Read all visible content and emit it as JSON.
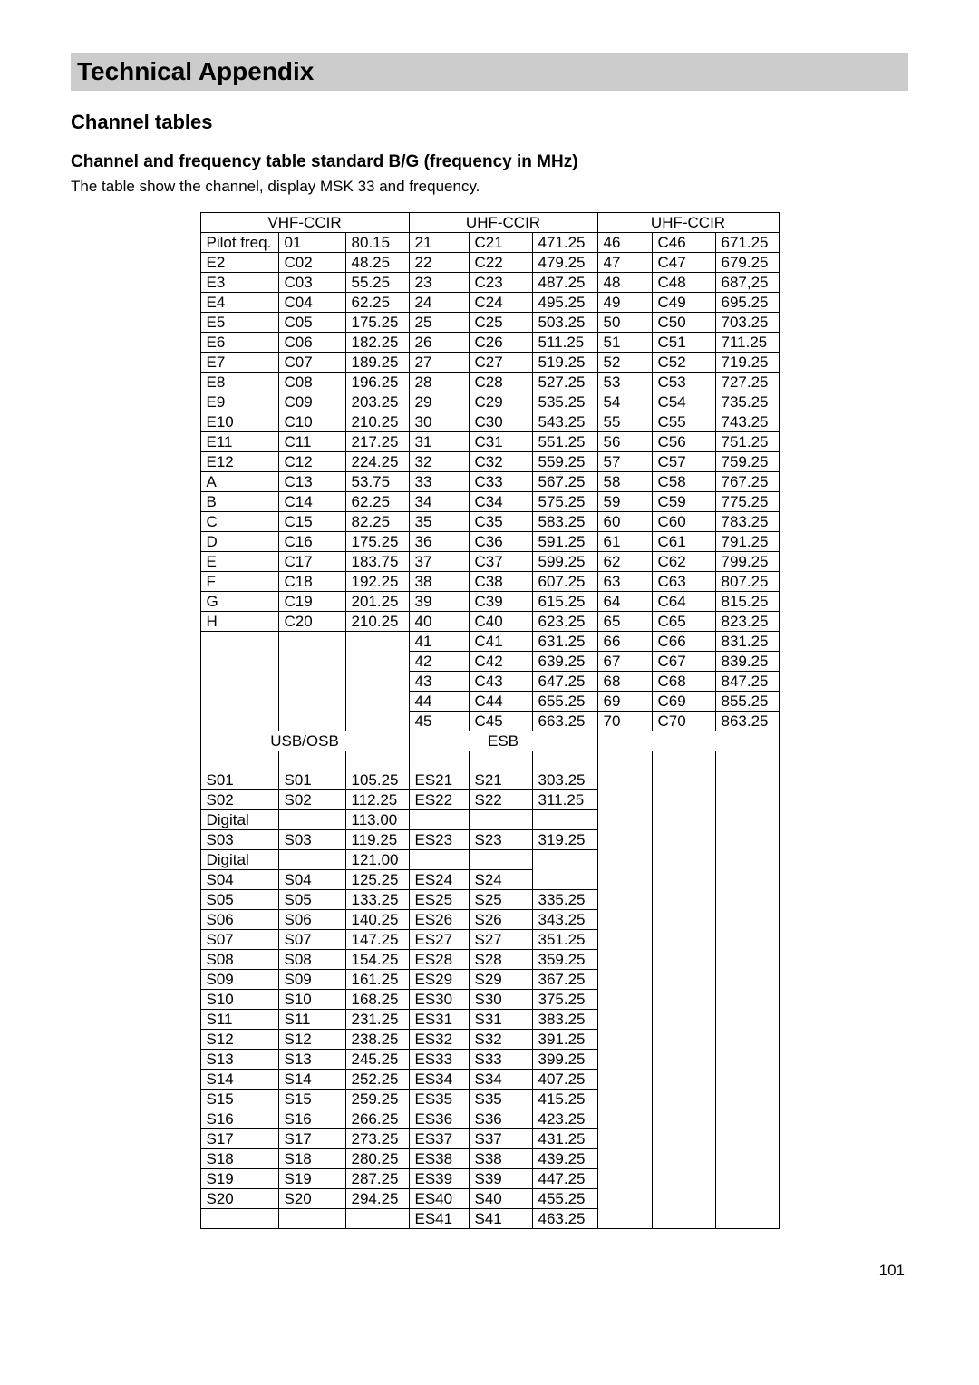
{
  "banner_title": "Technical Appendix",
  "section_title": "Channel tables",
  "subsection_title": "Channel and frequency table standard B/G (frequency in MHz)",
  "intro": "The table show the channel, display MSK 33 and frequency.",
  "page_number": "101",
  "group_headers_1": [
    "VHF-CCIR",
    "UHF-CCIR",
    "UHF-CCIR"
  ],
  "group_headers_2": [
    "USB/OSB",
    "ESB",
    ""
  ],
  "rows_top": [
    [
      "Pilot freq.",
      "01",
      "80.15",
      "21",
      "C21",
      "471.25",
      "46",
      "C46",
      "671.25"
    ],
    [
      "E2",
      "C02",
      "48.25",
      "22",
      "C22",
      "479.25",
      "47",
      "C47",
      "679.25"
    ],
    [
      "E3",
      "C03",
      "55.25",
      "23",
      "C23",
      "487.25",
      "48",
      "C48",
      "687,25"
    ],
    [
      "E4",
      "C04",
      "62.25",
      "24",
      "C24",
      "495.25",
      "49",
      "C49",
      "695.25"
    ],
    [
      "E5",
      "C05",
      "175.25",
      "25",
      "C25",
      "503.25",
      "50",
      "C50",
      "703.25"
    ],
    [
      "E6",
      "C06",
      "182.25",
      "26",
      "C26",
      "511.25",
      "51",
      "C51",
      "711.25"
    ],
    [
      "E7",
      "C07",
      "189.25",
      "27",
      "C27",
      "519.25",
      "52",
      "C52",
      "719.25"
    ],
    [
      "E8",
      "C08",
      "196.25",
      "28",
      "C28",
      "527.25",
      "53",
      "C53",
      "727.25"
    ],
    [
      "E9",
      "C09",
      "203.25",
      "29",
      "C29",
      "535.25",
      "54",
      "C54",
      "735.25"
    ],
    [
      "E10",
      "C10",
      "210.25",
      "30",
      "C30",
      "543.25",
      "55",
      "C55",
      "743.25"
    ],
    [
      "E11",
      "C11",
      "217.25",
      "31",
      "C31",
      "551.25",
      "56",
      "C56",
      "751.25"
    ],
    [
      "E12",
      "C12",
      "224.25",
      "32",
      "C32",
      "559.25",
      "57",
      "C57",
      "759.25"
    ],
    [
      "A",
      "C13",
      "53.75",
      "33",
      "C33",
      "567.25",
      "58",
      "C58",
      "767.25"
    ],
    [
      "B",
      "C14",
      "62.25",
      "34",
      "C34",
      "575.25",
      "59",
      "C59",
      "775.25"
    ],
    [
      "C",
      "C15",
      "82.25",
      "35",
      "C35",
      "583.25",
      "60",
      "C60",
      "783.25"
    ],
    [
      "D",
      "C16",
      "175.25",
      "36",
      "C36",
      "591.25",
      "61",
      "C61",
      "791.25"
    ],
    [
      "E",
      "C17",
      "183.75",
      "37",
      "C37",
      "599.25",
      "62",
      "C62",
      "799.25"
    ],
    [
      "F",
      "C18",
      "192.25",
      "38",
      "C38",
      "607.25",
      "63",
      "C63",
      "807.25"
    ],
    [
      "G",
      "C19",
      "201.25",
      "39",
      "C39",
      "615.25",
      "64",
      "C64",
      "815.25"
    ],
    [
      "H",
      "C20",
      "210.25",
      "40",
      "C40",
      "623.25",
      "65",
      "C65",
      "823.25"
    ],
    [
      "",
      "",
      "",
      "41",
      "C41",
      "631.25",
      "66",
      "C66",
      "831.25"
    ],
    [
      "",
      "",
      "",
      "42",
      "C42",
      "639.25",
      "67",
      "C67",
      "839.25"
    ],
    [
      "",
      "",
      "",
      "43",
      "C43",
      "647.25",
      "68",
      "C68",
      "847.25"
    ],
    [
      "",
      "",
      "",
      "44",
      "C44",
      "655.25",
      "69",
      "C69",
      "855.25"
    ],
    [
      "",
      "",
      "",
      "45",
      "C45",
      "663.25",
      "70",
      "C70",
      "863.25"
    ]
  ],
  "rows_bottom": [
    [
      "S01",
      "S01",
      "105.25",
      "ES21",
      "S21",
      "303.25",
      "",
      "",
      ""
    ],
    [
      "S02",
      "S02",
      "112.25",
      "ES22",
      "S22",
      "311.25",
      "",
      "",
      ""
    ],
    [
      "Digital",
      "",
      "113.00",
      "",
      "",
      "",
      "",
      "",
      ""
    ],
    [
      "S03",
      "S03",
      "119.25",
      "ES23",
      "S23",
      "319.25",
      "",
      "",
      ""
    ],
    [
      "Digital",
      "",
      "121.00",
      "",
      "",
      "",
      "",
      "",
      ""
    ],
    [
      "S04",
      "S04",
      "125.25",
      "ES24",
      "S24",
      "",
      "",
      "",
      ""
    ],
    [
      "S05",
      "S05",
      "133.25",
      "ES25",
      "S25",
      "335.25",
      "",
      "",
      ""
    ],
    [
      "S06",
      "S06",
      "140.25",
      "ES26",
      "S26",
      "343.25",
      "",
      "",
      ""
    ],
    [
      "S07",
      "S07",
      "147.25",
      "ES27",
      "S27",
      "351.25",
      "",
      "",
      ""
    ],
    [
      "S08",
      "S08",
      "154.25",
      "ES28",
      "S28",
      "359.25",
      "",
      "",
      ""
    ],
    [
      "S09",
      "S09",
      "161.25",
      "ES29",
      "S29",
      "367.25",
      "",
      "",
      ""
    ],
    [
      "S10",
      "S10",
      "168.25",
      "ES30",
      "S30",
      "375.25",
      "",
      "",
      ""
    ],
    [
      "S11",
      "S11",
      "231.25",
      "ES31",
      "S31",
      "383.25",
      "",
      "",
      ""
    ],
    [
      "S12",
      "S12",
      "238.25",
      "ES32",
      "S32",
      "391.25",
      "",
      "",
      ""
    ],
    [
      "S13",
      "S13",
      "245.25",
      "ES33",
      "S33",
      "399.25",
      "",
      "",
      ""
    ],
    [
      "S14",
      "S14",
      "252.25",
      "ES34",
      "S34",
      "407.25",
      "",
      "",
      ""
    ],
    [
      "S15",
      "S15",
      "259.25",
      "ES35",
      "S35",
      "415.25",
      "",
      "",
      ""
    ],
    [
      "S16",
      "S16",
      "266.25",
      "ES36",
      "S36",
      "423.25",
      "",
      "",
      ""
    ],
    [
      "S17",
      "S17",
      "273.25",
      "ES37",
      "S37",
      "431.25",
      "",
      "",
      ""
    ],
    [
      "S18",
      "S18",
      "280.25",
      "ES38",
      "S38",
      "439.25",
      "",
      "",
      ""
    ],
    [
      "S19",
      "S19",
      "287.25",
      "ES39",
      "S39",
      "447.25",
      "",
      "",
      ""
    ],
    [
      "S20",
      "S20",
      "294.25",
      "ES40",
      "S40",
      "455.25",
      "",
      "",
      ""
    ],
    [
      "",
      "",
      "",
      "ES41",
      "S41",
      "463.25",
      "",
      "",
      ""
    ]
  ]
}
